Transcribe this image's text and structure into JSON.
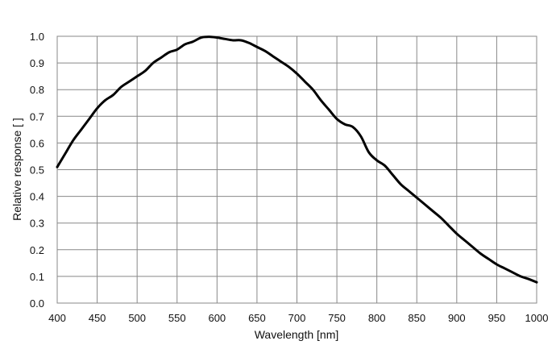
{
  "colors": {
    "background": "#ffffff",
    "grid": "#888888",
    "frame": "#888888",
    "curve": "#000000",
    "text": "#111111"
  },
  "chart_data": {
    "type": "line",
    "title": "",
    "xlabel": "Wavelength [nm]",
    "ylabel": "Relative response [ ]",
    "xlim": [
      400,
      1000
    ],
    "ylim": [
      0,
      1
    ],
    "grid": true,
    "legend": "none",
    "x_ticks": [
      "400",
      "450",
      "500",
      "550",
      "600",
      "650",
      "700",
      "750",
      "800",
      "850",
      "900",
      "950",
      "1000"
    ],
    "y_ticks": [
      "0.0",
      "0.1",
      "0.2",
      "0.3",
      "0.4",
      "0.5",
      "0.6",
      "0.7",
      "0.8",
      "0.9",
      "1.0"
    ],
    "series": [
      {
        "x": [
          400,
          410,
          420,
          430,
          440,
          450,
          460,
          470,
          480,
          490,
          500,
          510,
          520,
          530,
          540,
          550,
          560,
          570,
          580,
          590,
          600,
          610,
          620,
          630,
          640,
          650,
          660,
          670,
          680,
          690,
          700,
          710,
          720,
          730,
          740,
          750,
          760,
          770,
          780,
          790,
          800,
          810,
          820,
          830,
          840,
          850,
          860,
          870,
          880,
          890,
          900,
          910,
          920,
          930,
          940,
          950,
          960,
          970,
          980,
          990,
          1000
        ],
        "values": [
          0.51,
          0.56,
          0.61,
          0.65,
          0.69,
          0.73,
          0.76,
          0.78,
          0.81,
          0.83,
          0.85,
          0.87,
          0.9,
          0.92,
          0.94,
          0.95,
          0.97,
          0.98,
          0.995,
          0.998,
          0.995,
          0.99,
          0.985,
          0.985,
          0.975,
          0.96,
          0.945,
          0.925,
          0.905,
          0.885,
          0.86,
          0.83,
          0.8,
          0.76,
          0.725,
          0.69,
          0.67,
          0.66,
          0.625,
          0.565,
          0.535,
          0.515,
          0.48,
          0.445,
          0.42,
          0.395,
          0.37,
          0.345,
          0.32,
          0.29,
          0.26,
          0.235,
          0.21,
          0.185,
          0.165,
          0.145,
          0.13,
          0.115,
          0.1,
          0.09,
          0.078
        ]
      }
    ]
  }
}
